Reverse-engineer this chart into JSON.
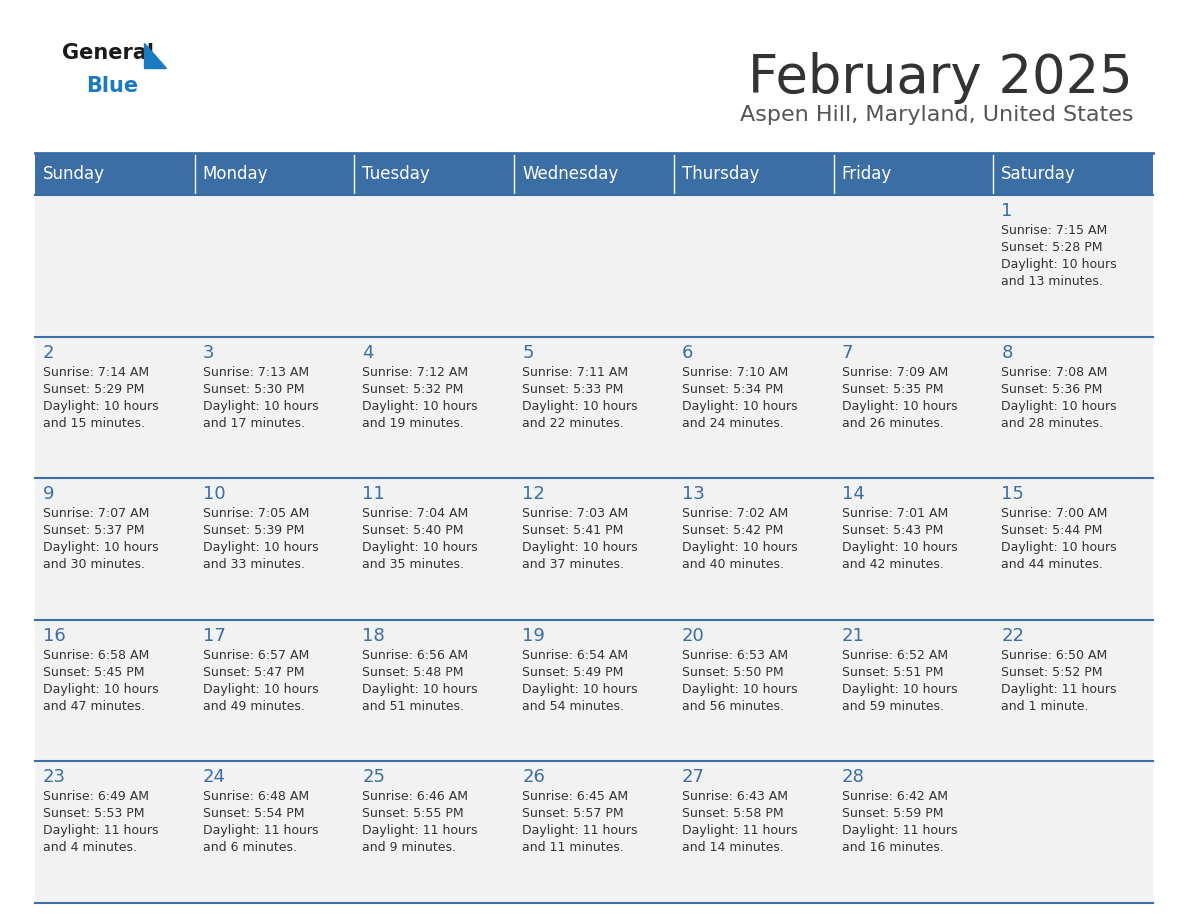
{
  "title": "February 2025",
  "subtitle": "Aspen Hill, Maryland, United States",
  "days_of_week": [
    "Sunday",
    "Monday",
    "Tuesday",
    "Wednesday",
    "Thursday",
    "Friday",
    "Saturday"
  ],
  "header_bg": "#3a6ea5",
  "header_text": "#ffffff",
  "cell_bg": "#f2f2f2",
  "border_color": "#3a6ea5",
  "day_number_color": "#3a6ea5",
  "info_text_color": "#333333",
  "title_color": "#333333",
  "subtitle_color": "#555555",
  "calendar_data": [
    [
      null,
      null,
      null,
      null,
      null,
      null,
      {
        "day": 1,
        "sunrise": "7:15 AM",
        "sunset": "5:28 PM",
        "daylight": "10 hours and 13 minutes."
      }
    ],
    [
      {
        "day": 2,
        "sunrise": "7:14 AM",
        "sunset": "5:29 PM",
        "daylight": "10 hours and 15 minutes."
      },
      {
        "day": 3,
        "sunrise": "7:13 AM",
        "sunset": "5:30 PM",
        "daylight": "10 hours and 17 minutes."
      },
      {
        "day": 4,
        "sunrise": "7:12 AM",
        "sunset": "5:32 PM",
        "daylight": "10 hours and 19 minutes."
      },
      {
        "day": 5,
        "sunrise": "7:11 AM",
        "sunset": "5:33 PM",
        "daylight": "10 hours and 22 minutes."
      },
      {
        "day": 6,
        "sunrise": "7:10 AM",
        "sunset": "5:34 PM",
        "daylight": "10 hours and 24 minutes."
      },
      {
        "day": 7,
        "sunrise": "7:09 AM",
        "sunset": "5:35 PM",
        "daylight": "10 hours and 26 minutes."
      },
      {
        "day": 8,
        "sunrise": "7:08 AM",
        "sunset": "5:36 PM",
        "daylight": "10 hours and 28 minutes."
      }
    ],
    [
      {
        "day": 9,
        "sunrise": "7:07 AM",
        "sunset": "5:37 PM",
        "daylight": "10 hours and 30 minutes."
      },
      {
        "day": 10,
        "sunrise": "7:05 AM",
        "sunset": "5:39 PM",
        "daylight": "10 hours and 33 minutes."
      },
      {
        "day": 11,
        "sunrise": "7:04 AM",
        "sunset": "5:40 PM",
        "daylight": "10 hours and 35 minutes."
      },
      {
        "day": 12,
        "sunrise": "7:03 AM",
        "sunset": "5:41 PM",
        "daylight": "10 hours and 37 minutes."
      },
      {
        "day": 13,
        "sunrise": "7:02 AM",
        "sunset": "5:42 PM",
        "daylight": "10 hours and 40 minutes."
      },
      {
        "day": 14,
        "sunrise": "7:01 AM",
        "sunset": "5:43 PM",
        "daylight": "10 hours and 42 minutes."
      },
      {
        "day": 15,
        "sunrise": "7:00 AM",
        "sunset": "5:44 PM",
        "daylight": "10 hours and 44 minutes."
      }
    ],
    [
      {
        "day": 16,
        "sunrise": "6:58 AM",
        "sunset": "5:45 PM",
        "daylight": "10 hours and 47 minutes."
      },
      {
        "day": 17,
        "sunrise": "6:57 AM",
        "sunset": "5:47 PM",
        "daylight": "10 hours and 49 minutes."
      },
      {
        "day": 18,
        "sunrise": "6:56 AM",
        "sunset": "5:48 PM",
        "daylight": "10 hours and 51 minutes."
      },
      {
        "day": 19,
        "sunrise": "6:54 AM",
        "sunset": "5:49 PM",
        "daylight": "10 hours and 54 minutes."
      },
      {
        "day": 20,
        "sunrise": "6:53 AM",
        "sunset": "5:50 PM",
        "daylight": "10 hours and 56 minutes."
      },
      {
        "day": 21,
        "sunrise": "6:52 AM",
        "sunset": "5:51 PM",
        "daylight": "10 hours and 59 minutes."
      },
      {
        "day": 22,
        "sunrise": "6:50 AM",
        "sunset": "5:52 PM",
        "daylight": "11 hours and 1 minute."
      }
    ],
    [
      {
        "day": 23,
        "sunrise": "6:49 AM",
        "sunset": "5:53 PM",
        "daylight": "11 hours and 4 minutes."
      },
      {
        "day": 24,
        "sunrise": "6:48 AM",
        "sunset": "5:54 PM",
        "daylight": "11 hours and 6 minutes."
      },
      {
        "day": 25,
        "sunrise": "6:46 AM",
        "sunset": "5:55 PM",
        "daylight": "11 hours and 9 minutes."
      },
      {
        "day": 26,
        "sunrise": "6:45 AM",
        "sunset": "5:57 PM",
        "daylight": "11 hours and 11 minutes."
      },
      {
        "day": 27,
        "sunrise": "6:43 AM",
        "sunset": "5:58 PM",
        "daylight": "11 hours and 14 minutes."
      },
      {
        "day": 28,
        "sunrise": "6:42 AM",
        "sunset": "5:59 PM",
        "daylight": "11 hours and 16 minutes."
      },
      null
    ]
  ],
  "logo_general_color": "#1a1a1a",
  "logo_blue_color": "#1a7abf",
  "logo_triangle_color": "#1a7abf"
}
